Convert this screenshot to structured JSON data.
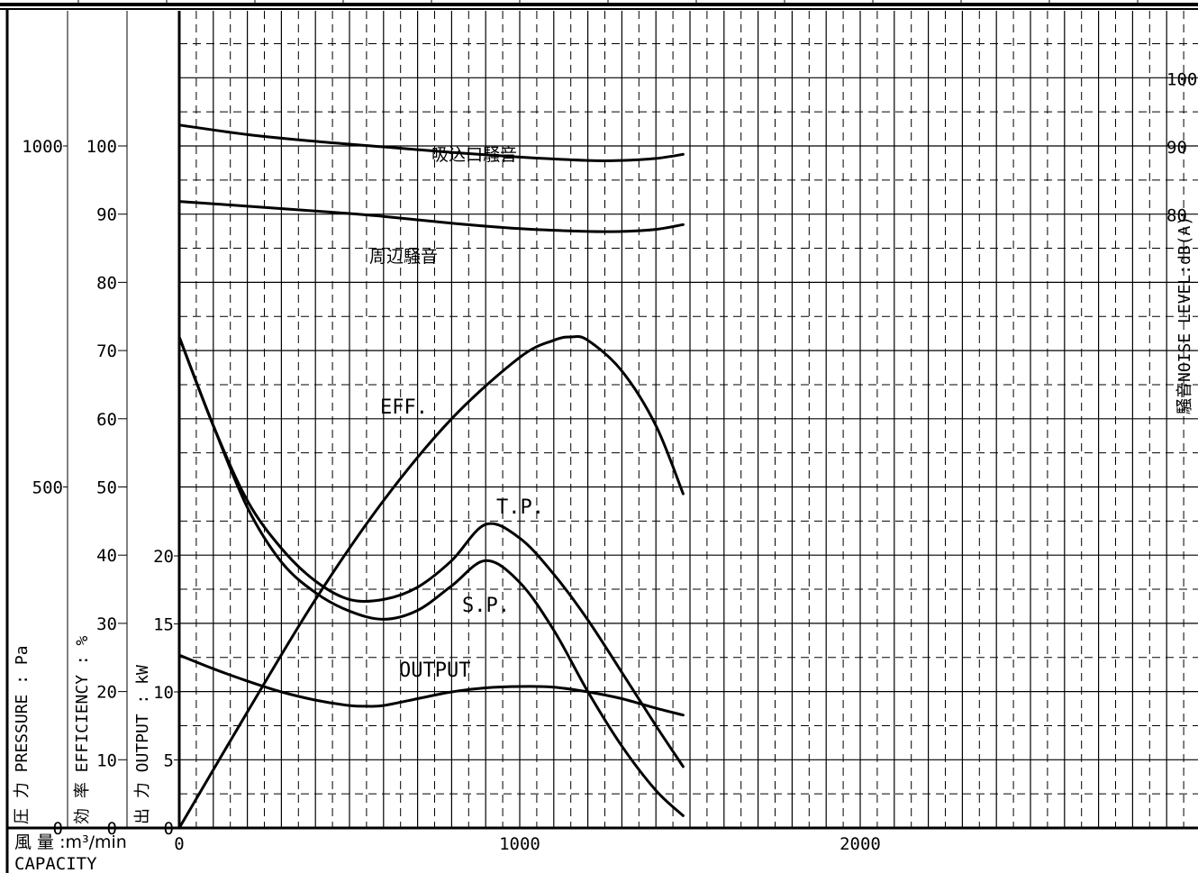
{
  "chart_data": {
    "type": "line",
    "x_axis": {
      "label_jp": "風 量 :m³/min",
      "label_en": "CAPACITY",
      "range": [
        0,
        3000
      ],
      "ticks": [
        0,
        1000,
        2000
      ]
    },
    "axes": {
      "pressure": {
        "label": "圧 力 PRESSURE : Pa",
        "range": [
          0,
          1200
        ],
        "tick_labels": [
          "1000",
          "500",
          "0"
        ],
        "tick_values": [
          1000,
          500,
          0
        ]
      },
      "efficiency": {
        "label": "効 率 EFFICIENCY : %",
        "range": [
          0,
          120
        ],
        "tick_labels": [
          "100",
          "90",
          "80",
          "70",
          "60",
          "50",
          "40",
          "30",
          "20",
          "10",
          "0"
        ],
        "tick_values": [
          100,
          90,
          80,
          70,
          60,
          50,
          40,
          30,
          20,
          10,
          0
        ]
      },
      "output": {
        "label": "出 力 OUTPUT : kW",
        "range": [
          0,
          60
        ],
        "tick_labels": [
          "20",
          "15",
          "10",
          "5",
          "0"
        ],
        "tick_values": [
          20,
          15,
          10,
          5,
          0
        ]
      },
      "noise": {
        "label": "騒音NOISE LEVEL:dB(A)",
        "tick_labels": [
          "100",
          "90",
          "80"
        ],
        "tick_values": [
          100,
          90,
          80
        ]
      }
    },
    "grid": true,
    "series": [
      {
        "name": "吸込口騒音",
        "axis": "noise",
        "x": [
          0,
          200,
          400,
          600,
          800,
          1000,
          1200,
          1300,
          1400,
          1480
        ],
        "y": [
          93.2,
          91.8,
          90.8,
          90.0,
          89.2,
          88.5,
          88.0,
          88.0,
          88.3,
          88.9
        ]
      },
      {
        "name": "周辺騒音",
        "axis": "noise",
        "x": [
          0,
          200,
          400,
          600,
          800,
          1000,
          1200,
          1300,
          1400,
          1480
        ],
        "y": [
          82.0,
          81.3,
          80.6,
          79.8,
          78.8,
          78.0,
          77.6,
          77.6,
          77.9,
          78.6
        ]
      },
      {
        "name": "EFF.",
        "axis": "efficiency",
        "x": [
          0,
          200,
          400,
          600,
          800,
          1000,
          1100,
          1150,
          1200,
          1300,
          1400,
          1480
        ],
        "y": [
          0,
          17,
          33.5,
          48,
          60,
          69,
          71.5,
          72.0,
          71.5,
          67.0,
          59.0,
          49.0
        ]
      },
      {
        "name": "T.P.",
        "axis": "pressure",
        "x": [
          0,
          100,
          200,
          300,
          400,
          500,
          600,
          700,
          800,
          900,
          1000,
          1100,
          1200,
          1300,
          1400,
          1480
        ],
        "y": [
          720,
          590,
          480,
          410,
          362,
          335,
          335,
          353,
          392,
          445,
          425,
          372,
          305,
          228,
          150,
          90
        ]
      },
      {
        "name": "S.P.",
        "axis": "pressure",
        "x": [
          0,
          100,
          200,
          300,
          400,
          500,
          600,
          700,
          800,
          900,
          1000,
          1100,
          1200,
          1300,
          1400,
          1480
        ],
        "y": [
          720,
          590,
          470,
          390,
          345,
          318,
          306,
          319,
          355,
          392,
          360,
          290,
          200,
          120,
          55,
          18
        ]
      },
      {
        "name": "OUTPUT",
        "axis": "output",
        "x": [
          0,
          100,
          200,
          300,
          400,
          500,
          550,
          600,
          700,
          800,
          900,
          1000,
          1100,
          1200,
          1300,
          1400,
          1480
        ],
        "y": [
          12.7,
          11.7,
          10.8,
          10.0,
          9.4,
          9.0,
          8.95,
          9.0,
          9.5,
          10.0,
          10.3,
          10.4,
          10.35,
          10.0,
          9.5,
          8.8,
          8.3
        ]
      }
    ],
    "annotations": [
      "吸込口騒音",
      "周辺騒音",
      "EFF.",
      "T.P.",
      "S.P.",
      "OUTPUT"
    ]
  }
}
